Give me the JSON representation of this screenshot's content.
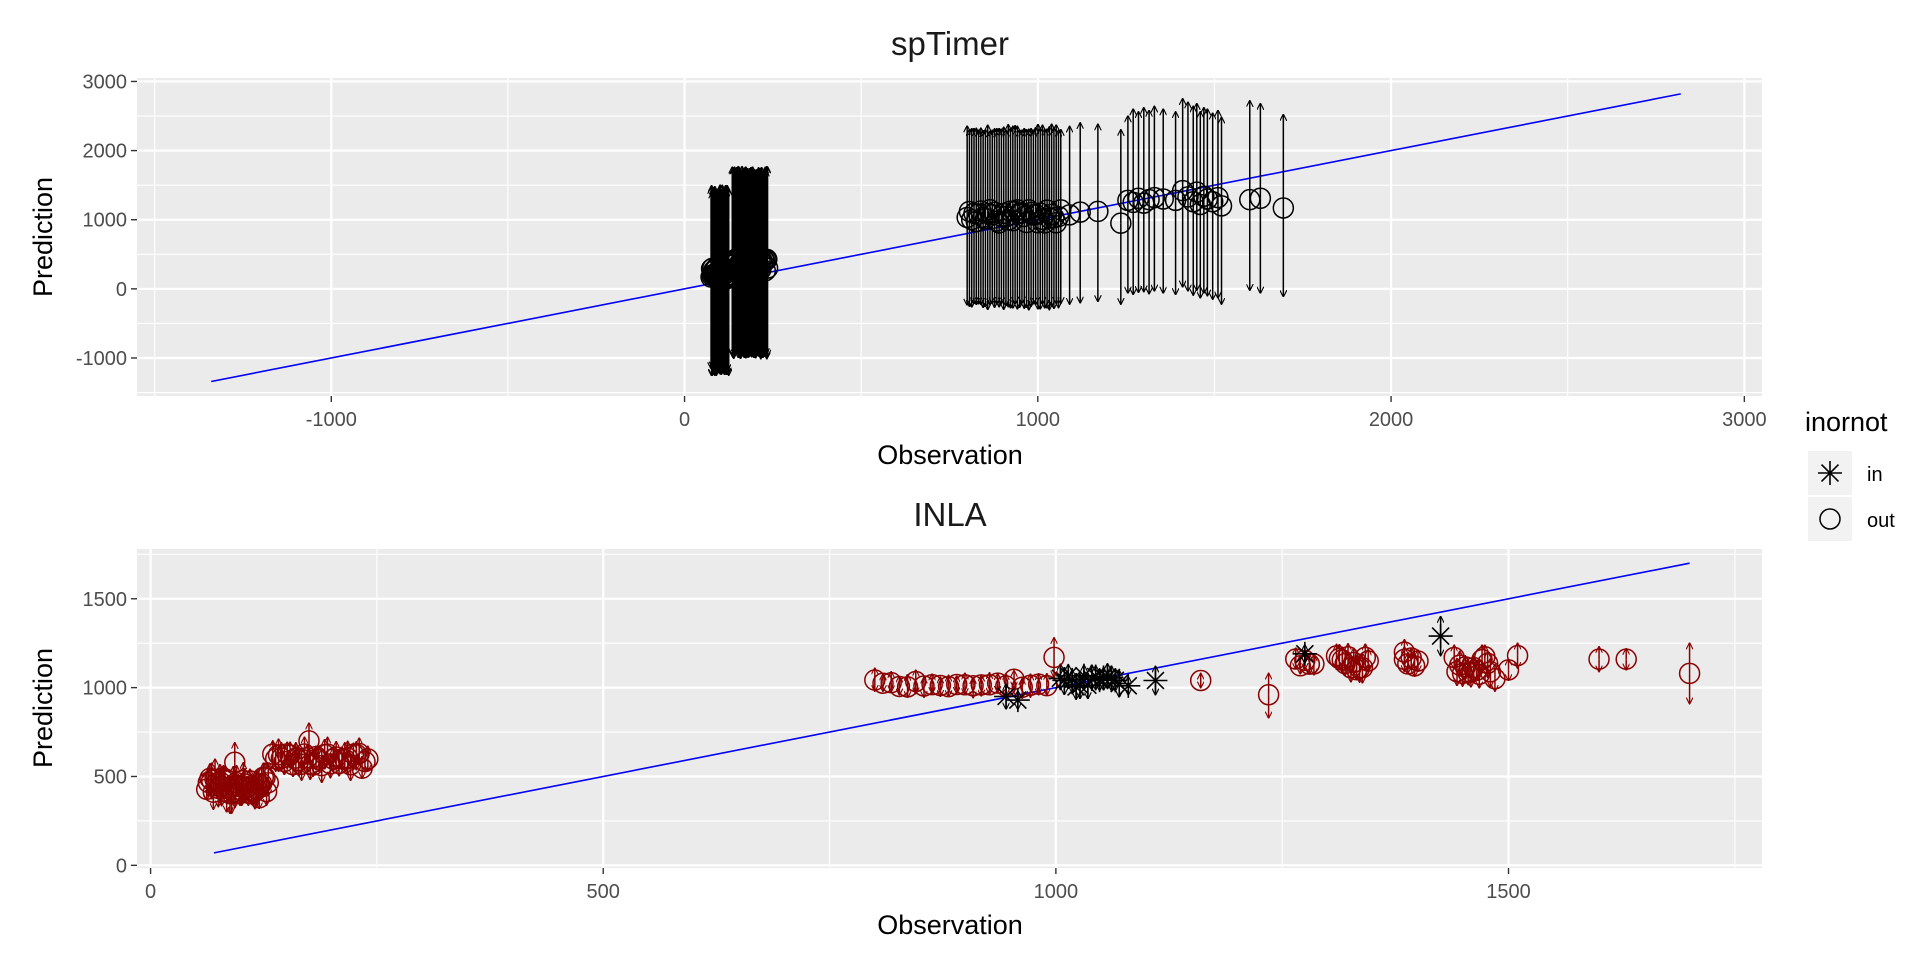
{
  "legend": {
    "title": "inornot",
    "items": [
      {
        "label": "in",
        "shape": "asterisk"
      },
      {
        "label": "out",
        "shape": "circle"
      }
    ],
    "placement": "right"
  },
  "chart_data": [
    {
      "type": "scatter",
      "title": "spTimer",
      "xlabel": "Observation",
      "ylabel": "Prediction",
      "xlim": [
        -1550,
        3050
      ],
      "ylim": [
        -1550,
        3050
      ],
      "xticks": [
        -1000,
        0,
        1000,
        2000,
        3000
      ],
      "yticks": [
        -1000,
        0,
        1000,
        2000,
        3000
      ],
      "xtick_labels": [
        "-1000",
        "0",
        "1000",
        "2000",
        "3000"
      ],
      "ytick_labels": [
        "-1000",
        "0",
        "1000",
        "2000",
        "3000"
      ],
      "grid": true,
      "reference_line": {
        "x": [
          -1340,
          2820
        ],
        "y": [
          -1340,
          2820
        ],
        "color": "#0000ff"
      },
      "colors": {
        "in": "#000000",
        "out": "#000000"
      },
      "clusters": [
        {
          "x_range": [
            75,
            125
          ],
          "n": 34,
          "y_range": [
            130,
            300
          ],
          "lower": -1200,
          "upper": 1450,
          "jitter": 120,
          "group": "out"
        },
        {
          "x_range": [
            135,
            235
          ],
          "n": 48,
          "y_range": [
            260,
            430
          ],
          "lower": -970,
          "upper": 1730,
          "jitter": 80,
          "group": "out"
        },
        {
          "x_range": [
            800,
            1065
          ],
          "n": 42,
          "y_range": [
            950,
            1150
          ],
          "lower": -250,
          "upper": 2330,
          "jitter": 110,
          "group": "out"
        }
      ],
      "points": [
        {
          "x": 1090,
          "y": 1070,
          "lower": -220,
          "upper": 2350,
          "group": "out"
        },
        {
          "x": 1120,
          "y": 1110,
          "lower": -200,
          "upper": 2400,
          "group": "out"
        },
        {
          "x": 1170,
          "y": 1120,
          "lower": -180,
          "upper": 2380,
          "group": "out"
        },
        {
          "x": 1235,
          "y": 950,
          "lower": -220,
          "upper": 2300,
          "group": "out"
        },
        {
          "x": 1255,
          "y": 1280,
          "lower": -60,
          "upper": 2500,
          "group": "out"
        },
        {
          "x": 1270,
          "y": 1250,
          "lower": -80,
          "upper": 2600,
          "group": "out"
        },
        {
          "x": 1285,
          "y": 1310,
          "lower": -50,
          "upper": 2560,
          "group": "out"
        },
        {
          "x": 1300,
          "y": 1240,
          "lower": -40,
          "upper": 2620,
          "group": "out"
        },
        {
          "x": 1315,
          "y": 1290,
          "lower": -70,
          "upper": 2580,
          "group": "out"
        },
        {
          "x": 1330,
          "y": 1320,
          "lower": -30,
          "upper": 2640,
          "group": "out"
        },
        {
          "x": 1355,
          "y": 1300,
          "lower": -60,
          "upper": 2600,
          "group": "out"
        },
        {
          "x": 1390,
          "y": 1280,
          "lower": -80,
          "upper": 2560,
          "group": "out"
        },
        {
          "x": 1410,
          "y": 1420,
          "lower": 30,
          "upper": 2750,
          "group": "out"
        },
        {
          "x": 1425,
          "y": 1330,
          "lower": -30,
          "upper": 2700,
          "group": "out"
        },
        {
          "x": 1440,
          "y": 1260,
          "lower": -90,
          "upper": 2640,
          "group": "out"
        },
        {
          "x": 1450,
          "y": 1400,
          "lower": -20,
          "upper": 2680,
          "group": "out"
        },
        {
          "x": 1460,
          "y": 1220,
          "lower": -130,
          "upper": 2560,
          "group": "out"
        },
        {
          "x": 1470,
          "y": 1340,
          "lower": -60,
          "upper": 2620,
          "group": "out"
        },
        {
          "x": 1480,
          "y": 1300,
          "lower": -100,
          "upper": 2600,
          "group": "out"
        },
        {
          "x": 1495,
          "y": 1260,
          "lower": -150,
          "upper": 2540,
          "group": "out"
        },
        {
          "x": 1510,
          "y": 1320,
          "lower": -130,
          "upper": 2580,
          "group": "out"
        },
        {
          "x": 1520,
          "y": 1200,
          "lower": -220,
          "upper": 2480,
          "group": "out"
        },
        {
          "x": 1600,
          "y": 1290,
          "lower": -20,
          "upper": 2720,
          "group": "out"
        },
        {
          "x": 1630,
          "y": 1310,
          "lower": -60,
          "upper": 2680,
          "group": "out"
        },
        {
          "x": 1695,
          "y": 1170,
          "lower": -110,
          "upper": 2520,
          "group": "out"
        }
      ]
    },
    {
      "type": "scatter",
      "title": "INLA",
      "xlabel": "Observation",
      "ylabel": "Prediction",
      "xlim": [
        -15,
        1780
      ],
      "ylim": [
        -15,
        1780
      ],
      "xticks": [
        0,
        500,
        1000,
        1500
      ],
      "yticks": [
        0,
        500,
        1000,
        1500
      ],
      "xtick_labels": [
        "0",
        "500",
        "1000",
        "1500"
      ],
      "ytick_labels": [
        "0",
        "500",
        "1000",
        "1500"
      ],
      "grid": true,
      "reference_line": {
        "x": [
          70,
          1700
        ],
        "y": [
          70,
          1700
        ],
        "color": "#0000ff"
      },
      "colors": {
        "in": "#000000",
        "out": "#8b0000"
      },
      "clusters": [
        {
          "x_range": [
            62,
            130
          ],
          "n": 38,
          "y_range": [
            400,
            500
          ],
          "spread": 55,
          "jitter": 60,
          "group": "out"
        },
        {
          "x_range": [
            135,
            240
          ],
          "n": 34,
          "y_range": [
            545,
            630
          ],
          "spread": 55,
          "jitter": 40,
          "group": "out"
        },
        {
          "x_range": [
            800,
            990
          ],
          "n": 22,
          "y_range": [
            1000,
            1050
          ],
          "spread": 45,
          "jitter": 25,
          "group": "out"
        },
        {
          "x_range": [
            1005,
            1070
          ],
          "n": 16,
          "y_range": [
            1000,
            1070
          ],
          "spread": 55,
          "jitter": 25,
          "group": "in"
        },
        {
          "x_range": [
            1265,
            1285
          ],
          "n": 5,
          "y_range": [
            1120,
            1170
          ],
          "spread": 45,
          "jitter": 20,
          "group": "out"
        },
        {
          "x_range": [
            1310,
            1345
          ],
          "n": 12,
          "y_range": [
            1100,
            1180
          ],
          "spread": 55,
          "jitter": 30,
          "group": "out"
        },
        {
          "x_range": [
            1385,
            1400
          ],
          "n": 5,
          "y_range": [
            1120,
            1180
          ],
          "spread": 50,
          "jitter": 20,
          "group": "out"
        },
        {
          "x_range": [
            1440,
            1480
          ],
          "n": 14,
          "y_range": [
            1060,
            1180
          ],
          "spread": 55,
          "jitter": 30,
          "group": "out"
        }
      ],
      "points": [
        {
          "x": 93,
          "y": 580,
          "lower": 470,
          "upper": 690,
          "group": "out"
        },
        {
          "x": 120,
          "y": 380,
          "lower": 320,
          "upper": 440,
          "group": "out"
        },
        {
          "x": 175,
          "y": 700,
          "lower": 600,
          "upper": 800,
          "group": "out"
        },
        {
          "x": 945,
          "y": 950,
          "lower": 880,
          "upper": 1020,
          "group": "in"
        },
        {
          "x": 958,
          "y": 930,
          "lower": 880,
          "upper": 980,
          "group": "in"
        },
        {
          "x": 998,
          "y": 1170,
          "lower": 1060,
          "upper": 1280,
          "group": "out"
        },
        {
          "x": 1080,
          "y": 1010,
          "lower": 960,
          "upper": 1060,
          "group": "in"
        },
        {
          "x": 1110,
          "y": 1040,
          "lower": 960,
          "upper": 1120,
          "group": "in"
        },
        {
          "x": 1160,
          "y": 1040,
          "lower": 1000,
          "upper": 1080,
          "group": "out"
        },
        {
          "x": 1235,
          "y": 960,
          "lower": 830,
          "upper": 1080,
          "group": "out"
        },
        {
          "x": 1275,
          "y": 1190,
          "lower": 1140,
          "upper": 1240,
          "group": "in"
        },
        {
          "x": 1385,
          "y": 1200,
          "lower": 1130,
          "upper": 1270,
          "group": "out"
        },
        {
          "x": 1425,
          "y": 1290,
          "lower": 1180,
          "upper": 1400,
          "group": "in"
        },
        {
          "x": 1485,
          "y": 1050,
          "lower": 980,
          "upper": 1130,
          "group": "out"
        },
        {
          "x": 1500,
          "y": 1100,
          "lower": 1040,
          "upper": 1160,
          "group": "out"
        },
        {
          "x": 1510,
          "y": 1180,
          "lower": 1110,
          "upper": 1250,
          "group": "out"
        },
        {
          "x": 1600,
          "y": 1160,
          "lower": 1090,
          "upper": 1230,
          "group": "out"
        },
        {
          "x": 1630,
          "y": 1160,
          "lower": 1100,
          "upper": 1220,
          "group": "out"
        },
        {
          "x": 1700,
          "y": 1080,
          "lower": 910,
          "upper": 1250,
          "group": "out"
        }
      ]
    }
  ]
}
